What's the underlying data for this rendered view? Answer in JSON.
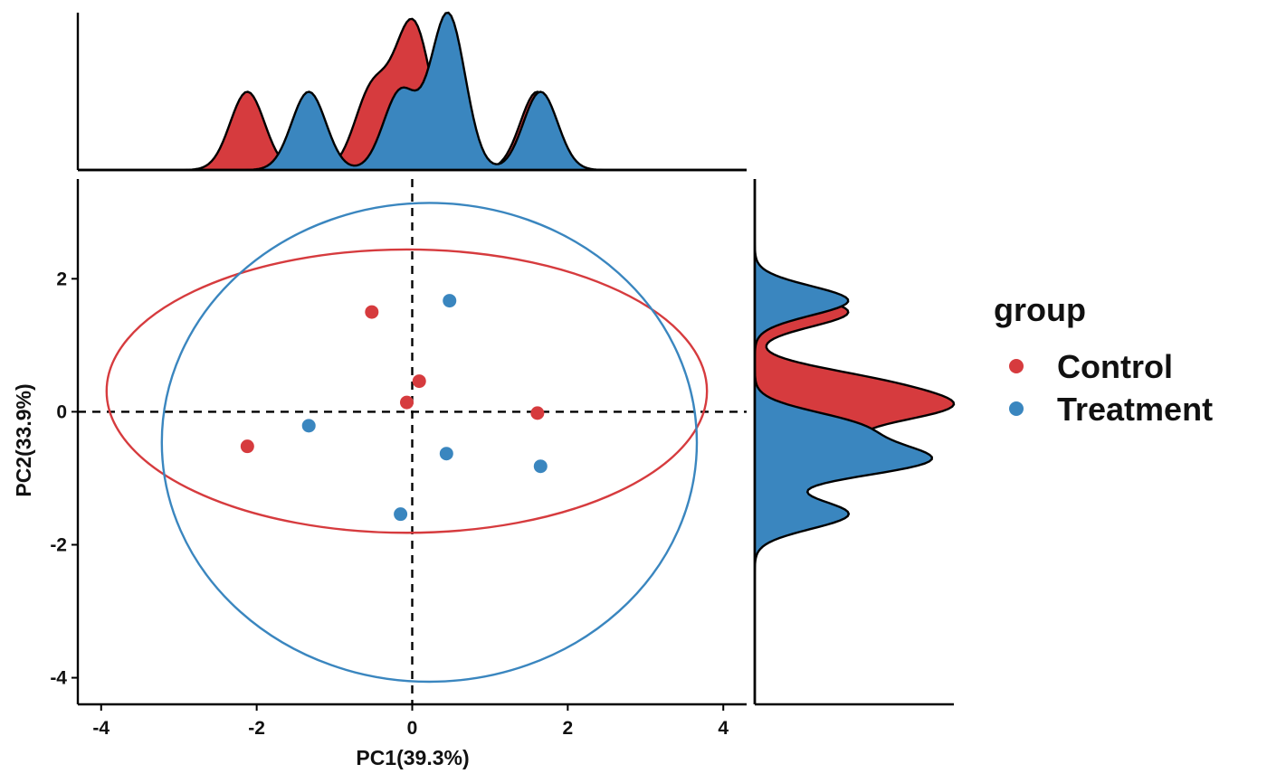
{
  "chart_data": {
    "type": "scatter",
    "xlabel": "PC1(39.3%)",
    "ylabel": "PC2(33.9%)",
    "xlim": [
      -4.3,
      4.3
    ],
    "ylim": [
      -4.4,
      3.5
    ],
    "x_ticks": [
      -4,
      -2,
      0,
      2,
      4
    ],
    "y_ticks": [
      -4,
      -2,
      0,
      2
    ],
    "x_tick_labels": [
      "-4",
      "-2",
      "0",
      "2",
      "4"
    ],
    "y_tick_labels": [
      "-4",
      "-2",
      "0",
      "2"
    ],
    "reference_lines": {
      "x": 0,
      "y": 0,
      "style": "dashed"
    },
    "grid": false,
    "legend": {
      "title": "group",
      "position": "right"
    },
    "marginal_density": {
      "top": "x",
      "right": "y",
      "bandwidth": 0.22
    },
    "series": [
      {
        "name": "Control",
        "color": "#D63B3E",
        "points": [
          {
            "x": -0.52,
            "y": 1.5
          },
          {
            "x": 0.09,
            "y": 0.46
          },
          {
            "x": -0.07,
            "y": 0.14
          },
          {
            "x": 1.61,
            "y": -0.02
          },
          {
            "x": -2.12,
            "y": -0.52
          }
        ],
        "ellipse": {
          "cx": -0.07,
          "cy": 0.31,
          "rx": 3.86,
          "ry": 2.13
        }
      },
      {
        "name": "Treatment",
        "color": "#3A86BF",
        "points": [
          {
            "x": 0.48,
            "y": 1.67
          },
          {
            "x": -1.33,
            "y": -0.21
          },
          {
            "x": 0.44,
            "y": -0.63
          },
          {
            "x": 1.65,
            "y": -0.82
          },
          {
            "x": -0.15,
            "y": -1.54
          }
        ],
        "ellipse": {
          "cx": 0.22,
          "cy": -0.46,
          "rx": 3.44,
          "ry": 3.6
        }
      }
    ]
  }
}
